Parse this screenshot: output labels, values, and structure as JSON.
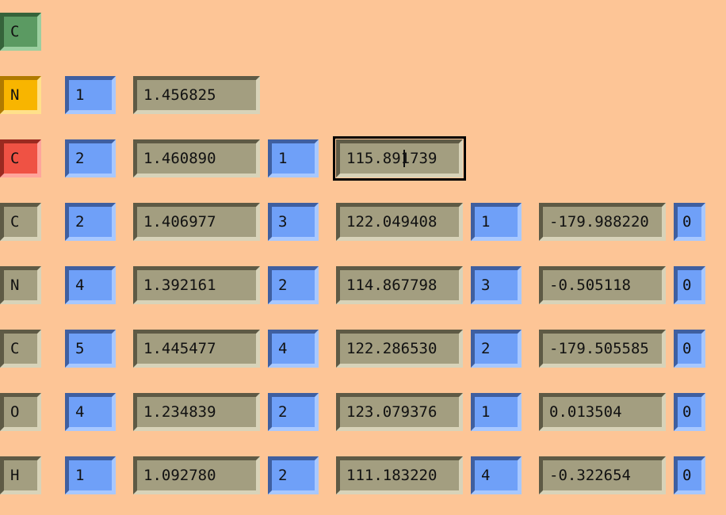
{
  "rows": [
    {
      "element": "C",
      "element_color": "green"
    },
    {
      "element": "N",
      "element_color": "orange",
      "bond_ref": "1",
      "bond_length": "1.456825"
    },
    {
      "element": "C",
      "element_color": "red",
      "bond_ref": "2",
      "bond_length": "1.460890",
      "angle_ref": "1",
      "angle": "115.891739"
    },
    {
      "element": "C",
      "element_color": "olive",
      "bond_ref": "2",
      "bond_length": "1.406977",
      "angle_ref": "3",
      "angle": "122.049408",
      "dihedral_ref": "1",
      "dihedral": "-179.988220",
      "flag": "0"
    },
    {
      "element": "N",
      "element_color": "olive",
      "bond_ref": "4",
      "bond_length": "1.392161",
      "angle_ref": "2",
      "angle": "114.867798",
      "dihedral_ref": "3",
      "dihedral": "-0.505118",
      "flag": "0"
    },
    {
      "element": "C",
      "element_color": "olive",
      "bond_ref": "5",
      "bond_length": "1.445477",
      "angle_ref": "4",
      "angle": "122.286530",
      "dihedral_ref": "2",
      "dihedral": "-179.505585",
      "flag": "0"
    },
    {
      "element": "O",
      "element_color": "olive",
      "bond_ref": "4",
      "bond_length": "1.234839",
      "angle_ref": "2",
      "angle": "123.079376",
      "dihedral_ref": "1",
      "dihedral": "0.013504",
      "flag": "0"
    },
    {
      "element": "H",
      "element_color": "olive",
      "bond_ref": "1",
      "bond_length": "1.092780",
      "angle_ref": "2",
      "angle": "111.183220",
      "dihedral_ref": "4",
      "dihedral": "-0.322654",
      "flag": "0"
    }
  ],
  "colors": {
    "background": "#fdc596",
    "ref_field": "#6fa0f8",
    "value_field": "#a39e80",
    "first_atom": "#5b9a62",
    "second_atom": "#f8b500",
    "third_atom": "#ef5244"
  },
  "focused_field": {
    "row": 2,
    "field": "angle"
  }
}
